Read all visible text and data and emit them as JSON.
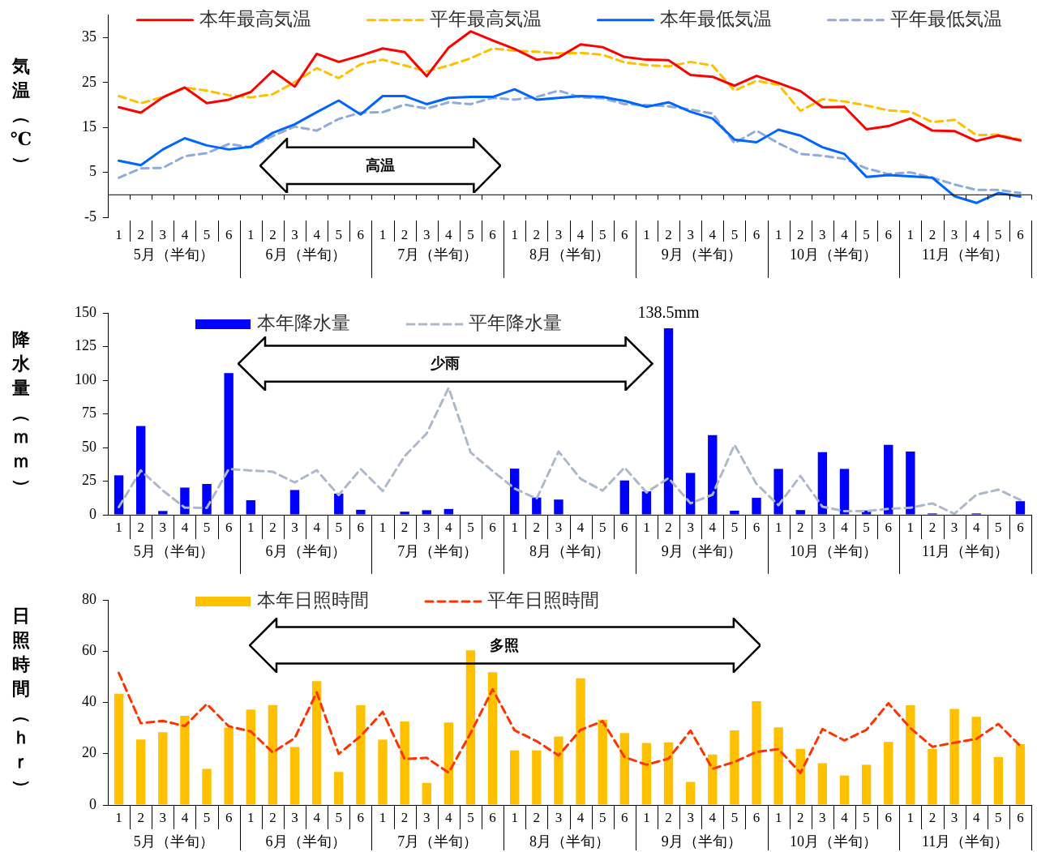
{
  "chart_data": [
    {
      "type": "line",
      "ylabel": "気温（℃）",
      "legend": "top",
      "categories": [
        "1",
        "2",
        "3",
        "4",
        "5",
        "6",
        "1",
        "2",
        "3",
        "4",
        "5",
        "6",
        "1",
        "2",
        "3",
        "4",
        "5",
        "6",
        "1",
        "2",
        "3",
        "4",
        "5",
        "6",
        "1",
        "2",
        "3",
        "4",
        "5",
        "6",
        "1",
        "2",
        "3",
        "4",
        "5",
        "6",
        "1",
        "2",
        "3",
        "4",
        "5",
        "6"
      ],
      "ylim": [
        -5,
        40
      ],
      "yticks": [
        -5,
        5,
        15,
        25,
        35
      ],
      "series": [
        {
          "name": "本年最高気温",
          "color": "#ff0000",
          "line_style": "solid",
          "values": [
            19.5,
            18.3,
            21.7,
            23.9,
            20.4,
            21.2,
            22.9,
            27.6,
            24.1,
            31.4,
            29.6,
            31.0,
            32.6,
            31.8,
            26.4,
            32.8,
            36.4,
            34.4,
            32.5,
            30.1,
            30.6,
            33.5,
            32.9,
            30.7,
            30.1,
            30.0,
            26.7,
            26.3,
            24.3,
            26.5,
            24.9,
            23.1,
            19.5,
            19.6,
            14.6,
            15.3,
            17.0,
            14.3,
            14.2,
            12.0,
            13.2,
            12.1
          ]
        },
        {
          "name": "平年最高気温",
          "color": "#ffc000",
          "line_style": "dashed",
          "values": [
            22.0,
            20.4,
            21.8,
            23.9,
            23.2,
            22.2,
            21.7,
            22.4,
            25.1,
            28.2,
            26.0,
            29.1,
            30.1,
            28.8,
            27.5,
            28.8,
            30.4,
            32.6,
            32.1,
            31.9,
            31.5,
            31.6,
            31.2,
            29.5,
            28.9,
            28.6,
            29.6,
            28.8,
            23.2,
            25.4,
            24.5,
            18.7,
            21.3,
            20.8,
            19.9,
            18.8,
            18.5,
            16.2,
            16.7,
            13.3,
            13.4,
            12.3
          ]
        },
        {
          "name": "本年最低気温",
          "color": "#0066ff",
          "line_style": "solid",
          "values": [
            7.6,
            6.6,
            10.1,
            12.6,
            11.0,
            10.1,
            10.7,
            13.8,
            15.7,
            18.4,
            21.0,
            17.9,
            22.0,
            22.0,
            20.2,
            21.6,
            21.8,
            21.8,
            23.5,
            21.2,
            21.6,
            22.0,
            21.8,
            20.9,
            19.6,
            20.6,
            18.5,
            17.0,
            12.3,
            11.7,
            14.5,
            13.2,
            10.6,
            9.1,
            4.0,
            4.4,
            4.1,
            3.8,
            -0.3,
            -1.8,
            0.4,
            -0.4
          ]
        },
        {
          "name": "平年最低気温",
          "color": "#8faadc",
          "line_style": "dashed",
          "values": [
            3.8,
            5.9,
            6.0,
            8.6,
            9.3,
            11.3,
            10.6,
            13.1,
            15.2,
            14.3,
            16.9,
            18.3,
            18.4,
            20.1,
            19.2,
            20.6,
            20.2,
            21.6,
            21.2,
            21.8,
            23.2,
            21.7,
            21.5,
            20.2,
            20.0,
            19.7,
            19.0,
            18.1,
            11.5,
            14.3,
            11.5,
            9.1,
            8.7,
            8.0,
            5.9,
            4.6,
            5.0,
            3.8,
            2.3,
            1.1,
            1.1,
            0.4
          ]
        }
      ],
      "annotations": [
        "5月（半旬）",
        "6月（半旬）",
        "7月（半旬）",
        "8月（半旬）",
        "9月（半旬）",
        "10月（半旬）",
        "11月（半旬）",
        "高温"
      ]
    },
    {
      "type": "bar",
      "ylabel": "降水量（ｍｍ）",
      "legend": "top left",
      "categories": [
        "1",
        "2",
        "3",
        "4",
        "5",
        "6",
        "1",
        "2",
        "3",
        "4",
        "5",
        "6",
        "1",
        "2",
        "3",
        "4",
        "5",
        "6",
        "1",
        "2",
        "3",
        "4",
        "5",
        "6",
        "1",
        "2",
        "3",
        "4",
        "5",
        "6",
        "1",
        "2",
        "3",
        "4",
        "5",
        "6",
        "1",
        "2",
        "3",
        "4",
        "5",
        "6"
      ],
      "ylim": [
        0,
        150
      ],
      "yticks": [
        0,
        25,
        50,
        75,
        100,
        125,
        150
      ],
      "series": [
        {
          "name": "本年降水量",
          "color": "#0000ff",
          "values": [
            29.3,
            65.9,
            2.8,
            20.2,
            22.9,
            105.2,
            10.8,
            0,
            18.4,
            0,
            15.7,
            3.7,
            0,
            2.3,
            3.4,
            4.3,
            0,
            0,
            34.3,
            12.8,
            11.3,
            null,
            0,
            25.5,
            17.4,
            138.5,
            31.1,
            59.2,
            3.0,
            12.6,
            34.1,
            3.5,
            46.5,
            34.1,
            3.2,
            52.0,
            47.0,
            1.0,
            0,
            1.0,
            null,
            10.1
          ],
          "value_labels": [
            null,
            null,
            null,
            null,
            null,
            null,
            null,
            null,
            null,
            null,
            null,
            null,
            null,
            null,
            null,
            null,
            null,
            null,
            null,
            null,
            null,
            null,
            null,
            null,
            null,
            "138.5mm",
            null,
            null,
            null,
            null,
            null,
            null,
            null,
            null,
            null,
            null,
            null,
            null,
            null,
            null,
            null,
            null
          ]
        },
        {
          "name": "平年降水量",
          "type": "line",
          "color": "#adb9ca",
          "line_style": "dashed",
          "values": [
            5.7,
            32.9,
            18.0,
            5.3,
            5.1,
            34.0,
            32.9,
            32.0,
            24.0,
            33.1,
            14.6,
            34.0,
            17.7,
            43.6,
            60.4,
            94.3,
            46.3,
            32.5,
            19.5,
            11.9,
            47.0,
            26.7,
            17.9,
            35.1,
            16.6,
            27.3,
            8.5,
            14.9,
            52.0,
            22.9,
            7.2,
            28.8,
            6.0,
            2.7,
            2.7,
            4.4,
            5.2,
            8.5,
            0.7,
            14.9,
            18.7,
            11.1
          ]
        }
      ],
      "annotations": [
        "5月（半旬）",
        "6月（半旬）",
        "7月（半旬）",
        "8月（半旬）",
        "9月（半旬）",
        "10月（半旬）",
        "11月（半旬）",
        "少雨"
      ]
    },
    {
      "type": "bar",
      "ylabel": "日照時間（ｈｒ）",
      "legend": "top left",
      "categories": [
        "1",
        "2",
        "3",
        "4",
        "5",
        "6",
        "1",
        "2",
        "3",
        "4",
        "5",
        "6",
        "1",
        "2",
        "3",
        "4",
        "5",
        "6",
        "1",
        "2",
        "3",
        "4",
        "5",
        "6",
        "1",
        "2",
        "3",
        "4",
        "5",
        "6",
        "1",
        "2",
        "3",
        "4",
        "5",
        "6",
        "1",
        "2",
        "3",
        "4",
        "5",
        "6"
      ],
      "ylim": [
        0,
        80
      ],
      "yticks": [
        0,
        20,
        40,
        60,
        80
      ],
      "series": [
        {
          "name": "本年日照時間",
          "color": "#ffc000",
          "values": [
            43.4,
            25.5,
            28.4,
            34.8,
            14.1,
            30.2,
            37.2,
            39.0,
            22.6,
            48.3,
            12.9,
            38.9,
            25.5,
            32.6,
            8.6,
            32.2,
            60.3,
            51.8,
            21.3,
            21.3,
            26.7,
            49.4,
            33.3,
            28.1,
            24.2,
            24.4,
            9.0,
            19.7,
            29.1,
            40.5,
            30.3,
            21.9,
            16.3,
            11.5,
            15.7,
            24.6,
            38.9,
            21.9,
            37.5,
            34.4,
            18.7,
            23.7
          ]
        },
        {
          "name": "平年日照時間",
          "type": "line",
          "color": "#ff3300",
          "line_style": "dashed",
          "values": [
            51.5,
            31.9,
            32.8,
            30.8,
            39.4,
            30.7,
            28.7,
            20.5,
            26.1,
            43.9,
            19.9,
            26.9,
            36.3,
            17.9,
            18.4,
            12.6,
            28.1,
            45.1,
            29.1,
            24.9,
            19.3,
            29.3,
            32.7,
            18.7,
            15.7,
            18.1,
            29.0,
            14.1,
            16.8,
            20.7,
            21.8,
            12.5,
            29.6,
            25.2,
            29.3,
            39.7,
            30.0,
            22.7,
            24.3,
            25.8,
            31.6,
            23.0
          ]
        }
      ],
      "annotations": [
        "5月（半旬）",
        "6月（半旬）",
        "7月（半旬）",
        "8月（半旬）",
        "9月（半旬）",
        "10月（半旬）",
        "11月（半旬）",
        "多照"
      ]
    }
  ]
}
